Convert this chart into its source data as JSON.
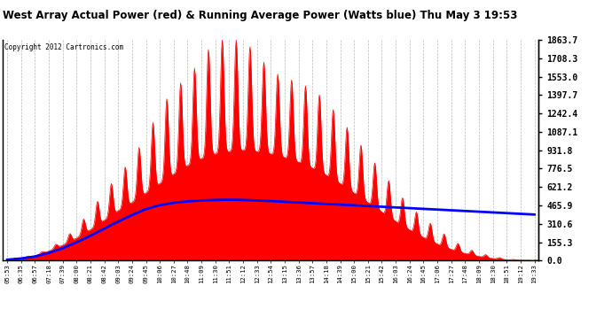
{
  "title": "West Array Actual Power (red) & Running Average Power (Watts blue) Thu May 3 19:53",
  "copyright": "Copyright 2012 Cartronics.com",
  "yticks": [
    0.0,
    155.3,
    310.6,
    465.9,
    621.2,
    776.5,
    931.8,
    1087.1,
    1242.4,
    1397.7,
    1553.0,
    1708.3,
    1863.7
  ],
  "ymax": 1863.7,
  "ymin": 0.0,
  "xtick_labels": [
    "05:53",
    "06:35",
    "06:57",
    "07:18",
    "07:39",
    "08:00",
    "08:21",
    "08:42",
    "09:03",
    "09:24",
    "09:45",
    "10:06",
    "10:27",
    "10:48",
    "11:09",
    "11:30",
    "11:51",
    "12:12",
    "12:33",
    "12:54",
    "13:15",
    "13:36",
    "13:57",
    "14:18",
    "14:39",
    "15:00",
    "15:21",
    "15:42",
    "16:03",
    "16:24",
    "16:45",
    "17:06",
    "17:27",
    "17:48",
    "18:09",
    "18:30",
    "18:51",
    "19:12",
    "19:33"
  ],
  "bg_color": "#ffffff",
  "grid_color": "#aaaaaa",
  "red_color": "#ff0000",
  "blue_color": "#0000ff",
  "envelope": [
    10,
    20,
    40,
    80,
    130,
    190,
    260,
    340,
    420,
    490,
    570,
    650,
    730,
    800,
    860,
    900,
    920,
    930,
    920,
    900,
    870,
    830,
    780,
    720,
    650,
    570,
    490,
    410,
    330,
    260,
    195,
    140,
    95,
    60,
    35,
    18,
    8,
    4,
    2
  ],
  "spike_heights": [
    10,
    25,
    50,
    100,
    175,
    280,
    420,
    580,
    720,
    860,
    1050,
    1280,
    1450,
    1550,
    1700,
    1863,
    1863,
    1863,
    1750,
    1600,
    1550,
    1500,
    1450,
    1350,
    1200,
    1050,
    900,
    750,
    600,
    460,
    360,
    270,
    180,
    110,
    65,
    35,
    15,
    6,
    3
  ],
  "running_avg": [
    8,
    18,
    35,
    65,
    105,
    155,
    210,
    270,
    330,
    385,
    435,
    468,
    488,
    500,
    508,
    512,
    514,
    512,
    508,
    503,
    497,
    491,
    485,
    479,
    473,
    467,
    461,
    455,
    449,
    443,
    437,
    431,
    425,
    419,
    413,
    407,
    401,
    395,
    389
  ]
}
